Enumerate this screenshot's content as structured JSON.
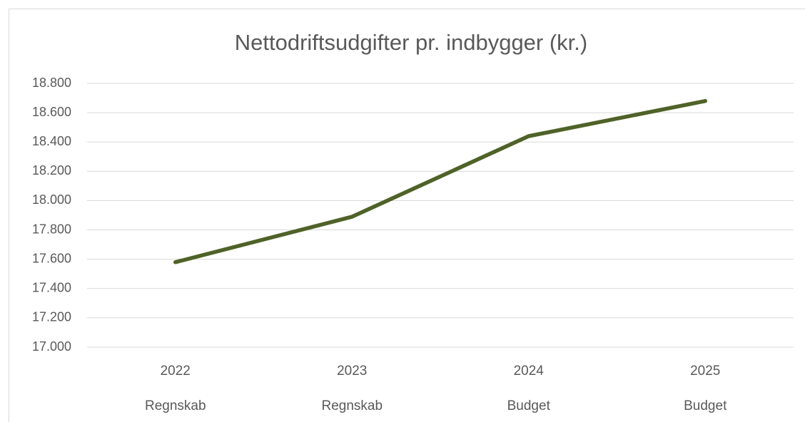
{
  "chart_data": {
    "type": "line",
    "title": "Nettodriftsudgifter pr. indbygger (kr.)",
    "categories": [
      [
        "2022",
        "Regnskab"
      ],
      [
        "2023",
        "Regnskab"
      ],
      [
        "2024",
        "Budget"
      ],
      [
        "2025",
        "Budget"
      ]
    ],
    "values": [
      17580,
      17890,
      18440,
      18680
    ],
    "color": "#4f6228",
    "ylim": [
      17000,
      18800
    ],
    "yticks": [
      {
        "value": 17000,
        "label": "17.000"
      },
      {
        "value": 17200,
        "label": "17.200"
      },
      {
        "value": 17400,
        "label": "17.400"
      },
      {
        "value": 17600,
        "label": "17.600"
      },
      {
        "value": 17800,
        "label": "17.800"
      },
      {
        "value": 18000,
        "label": "18.000"
      },
      {
        "value": 18200,
        "label": "18.200"
      },
      {
        "value": 18400,
        "label": "18.400"
      },
      {
        "value": 18600,
        "label": "18.600"
      },
      {
        "value": 18800,
        "label": "18.800"
      }
    ],
    "grid": true
  }
}
